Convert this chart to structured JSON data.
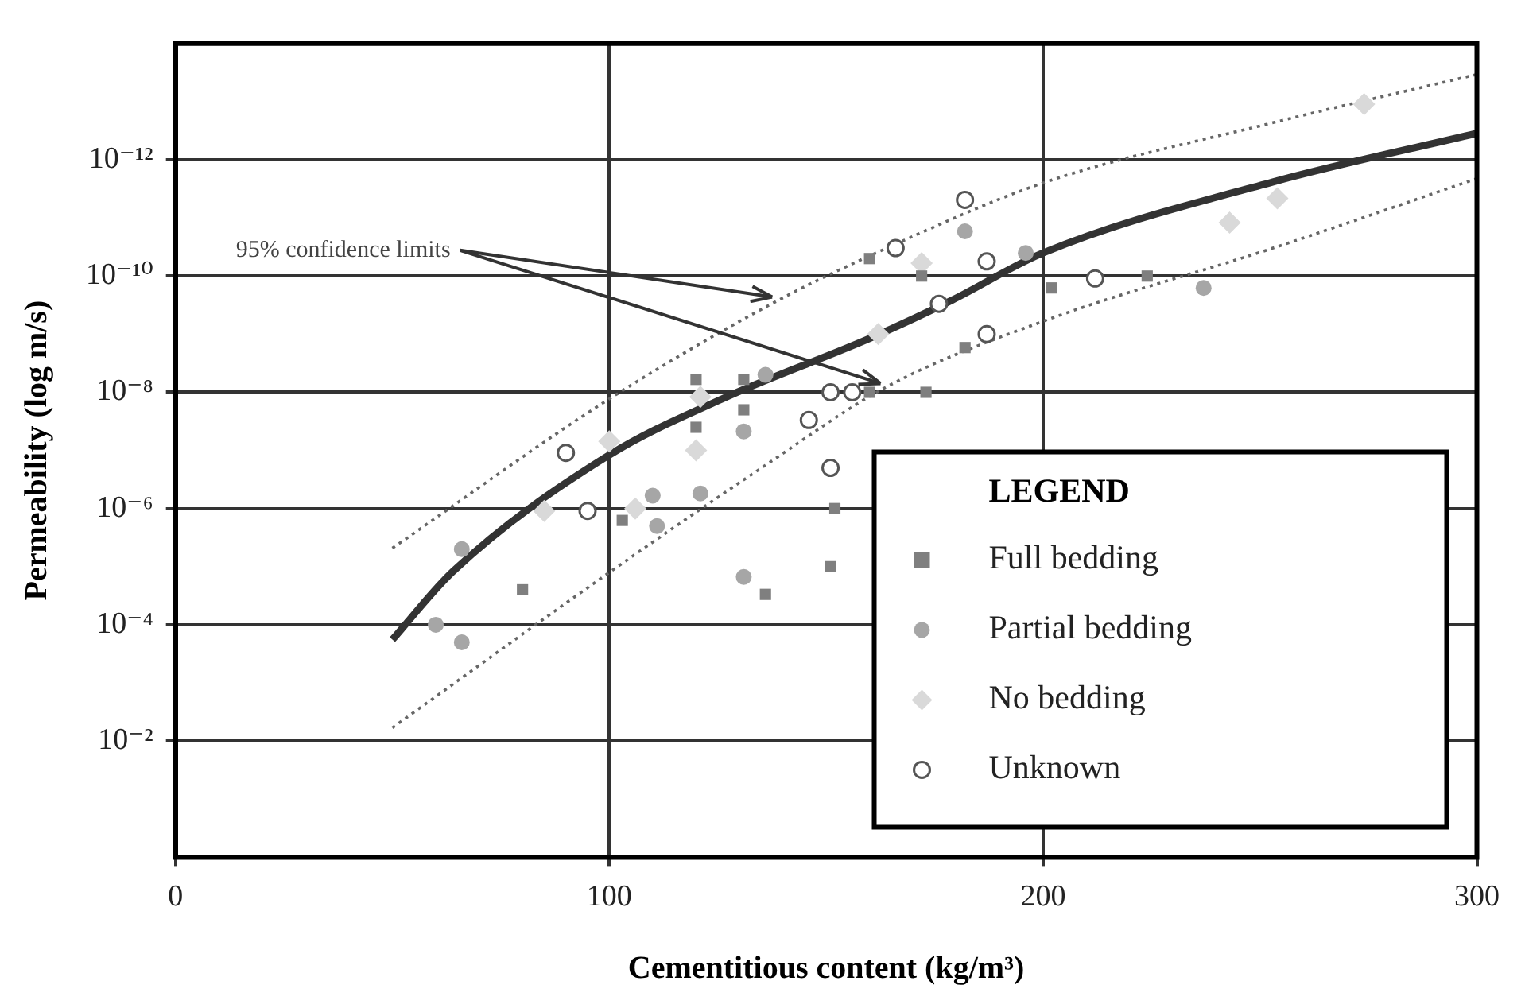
{
  "chart_data": {
    "type": "scatter",
    "xlabel": "Cementitious content (kg/m³)",
    "ylabel": "Permeability (log m/s)",
    "xlim": [
      0,
      300
    ],
    "xticks": [
      0,
      100,
      200,
      300
    ],
    "ylim": [
      1,
      1e-14
    ],
    "log": "y",
    "yticks": [
      {
        "value": 0.01,
        "label": "10⁻²"
      },
      {
        "value": 0.0001,
        "label": "10⁻⁴"
      },
      {
        "value": 1e-06,
        "label": "10⁻⁶"
      },
      {
        "value": 1e-08,
        "label": "10⁻⁸"
      },
      {
        "value": 1e-10,
        "label": "10⁻¹⁰"
      },
      {
        "value": 1e-12,
        "label": "10⁻¹²"
      }
    ],
    "grid": true,
    "legend": "bottom right",
    "legend_title": "LEGEND",
    "annotations": [
      {
        "text": "95% confidence limits",
        "x": 139,
        "y": 2.6e-10
      }
    ],
    "series": [
      {
        "name": "Full bedding",
        "color": "#7f7f7f",
        "marker": "square",
        "x": [
          80,
          136,
          151,
          152,
          103,
          120,
          120,
          131,
          131,
          160,
          172,
          182,
          202,
          224,
          160,
          173
        ],
        "values": [
          2.5e-05,
          3e-05,
          1e-05,
          1e-06,
          1.6e-06,
          6e-09,
          4e-08,
          6e-09,
          2e-08,
          5e-11,
          1e-10,
          1.7e-09,
          1.6e-10,
          1e-10,
          1e-08,
          1e-08
        ]
      },
      {
        "name": "Partial bedding",
        "color": "#a6a6a6",
        "marker": "circle",
        "x": [
          66,
          66,
          60,
          121,
          111,
          110,
          131,
          136,
          131,
          182,
          196,
          237
        ],
        "values": [
          5e-06,
          0.0002,
          0.0001,
          5.5e-07,
          2e-06,
          6e-07,
          4.7e-08,
          5e-09,
          1.5e-05,
          1.7e-11,
          4e-11,
          1.6e-10
        ]
      },
      {
        "name": "No bedding",
        "color": "#d9d9d9",
        "marker": "diamond",
        "x": [
          100,
          85,
          106,
          120,
          121,
          162,
          172,
          243,
          254,
          274
        ],
        "values": [
          7e-08,
          1.1e-06,
          1e-06,
          1e-07,
          1.2e-08,
          1e-09,
          6e-11,
          1.2e-11,
          4.6e-12,
          1.1e-13
        ]
      },
      {
        "name": "Unknown",
        "color": "#555555",
        "marker": "circle-open",
        "x": [
          90,
          95,
          146,
          151,
          151,
          156,
          166,
          182,
          187,
          176,
          187,
          212
        ],
        "values": [
          1.1e-07,
          1.1e-06,
          3e-08,
          2e-07,
          1e-08,
          1e-08,
          3.3e-11,
          4.9e-12,
          5.6e-11,
          3e-10,
          1e-09,
          1.1e-10
        ]
      },
      {
        "type": "line",
        "color": "#333333",
        "line_style": "solid",
        "x": [
          50,
          64,
          100,
          126,
          161,
          179,
          200,
          253,
          300
        ],
        "values": [
          0.00018,
          1.2e-05,
          1.2e-07,
          1.3e-08,
          1.1e-09,
          2.6e-10,
          4e-11,
          2.4e-12,
          3.5e-13
        ]
      },
      {
        "type": "line",
        "color": "#666666",
        "line_style": "dotted",
        "x": [
          50,
          100,
          139,
          164,
          200,
          253,
          300
        ],
        "values": [
          4.8e-06,
          1.3e-08,
          2.6e-10,
          3.3e-11,
          2.5e-12,
          2.3e-13,
          3.4e-14
        ]
      },
      {
        "type": "line",
        "color": "#666666",
        "line_style": "dotted",
        "x": [
          50,
          100,
          136,
          164,
          200,
          253,
          300
        ],
        "values": [
          0.0059,
          1.26e-05,
          1.8e-07,
          8e-09,
          6e-10,
          3.3e-11,
          2.1e-12
        ]
      }
    ]
  }
}
